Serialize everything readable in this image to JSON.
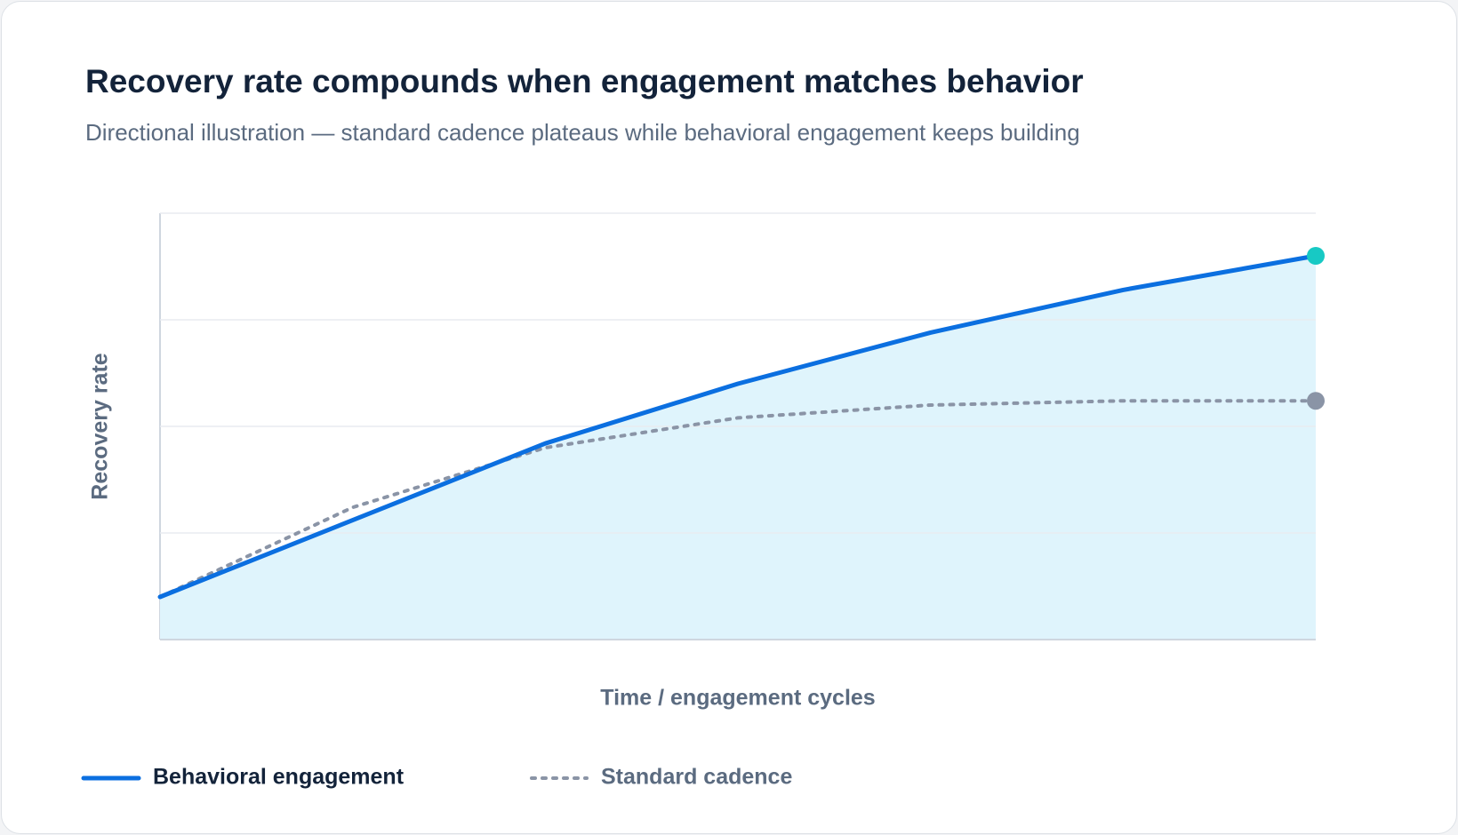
{
  "chart_data": {
    "type": "line",
    "title": "Recovery rate compounds when engagement matches behavior",
    "subtitle": "Directional illustration — standard cadence plateaus while behavioral engagement keeps building",
    "y_label": "Recovery rate",
    "x_label": "Time / engagement cycles",
    "x": [
      0,
      1,
      2,
      3,
      4,
      5,
      6
    ],
    "xlim": [
      0,
      6
    ],
    "ylim": [
      0,
      100
    ],
    "yticks": [
      0,
      25,
      50,
      75,
      100
    ],
    "grid": true,
    "series": [
      {
        "name": "Behavioral engagement",
        "color": "#0b6fe0",
        "style": "solid",
        "fill": "#dff4fc",
        "end_color": "#17c9c4",
        "values": [
          10,
          28,
          46,
          60,
          72,
          82,
          90
        ]
      },
      {
        "name": "Standard cadence",
        "color": "#8a94a6",
        "style": "dotted",
        "end_color": "#8a94a6",
        "values": [
          10,
          31,
          45,
          52,
          55,
          56,
          56
        ]
      }
    ]
  }
}
